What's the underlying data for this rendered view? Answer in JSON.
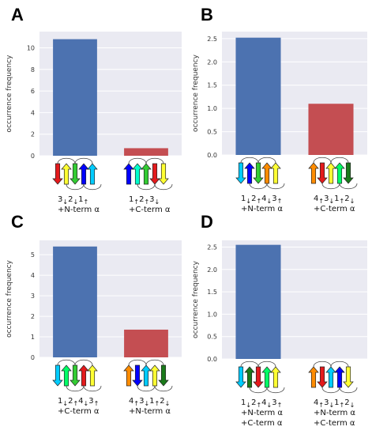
{
  "chart_data": [
    {
      "panel": "A",
      "type": "bar",
      "ylabel": "occurrence frequency",
      "ylim": [
        0,
        11.5
      ],
      "yticks": [
        0,
        2,
        4,
        6,
        8,
        10
      ],
      "grid": true,
      "bars": [
        {
          "value": 10.8,
          "color": "#4c72b0",
          "topology": [
            "3",
            "↓",
            "2",
            "↓",
            "1",
            "↑"
          ],
          "caption_lines": [
            "+N-term α"
          ],
          "arrows": [
            {
              "color": "#e41a1c",
              "dir": "down"
            },
            {
              "color": "#ffff33",
              "dir": "up"
            },
            {
              "color": "#33cc33",
              "dir": "down"
            },
            {
              "color": "#0000ff",
              "dir": "up"
            },
            {
              "color": "#00ccff",
              "dir": "up"
            }
          ]
        },
        {
          "value": 0.7,
          "color": "#c44e52",
          "topology": [
            "1",
            "↑",
            "2",
            "↑",
            "3",
            "↓"
          ],
          "caption_lines": [
            "+C-term α"
          ],
          "arrows": [
            {
              "color": "#0000ff",
              "dir": "up"
            },
            {
              "color": "#00ffcc",
              "dir": "up"
            },
            {
              "color": "#33cc33",
              "dir": "up"
            },
            {
              "color": "#e41a1c",
              "dir": "down"
            },
            {
              "color": "#ffff33",
              "dir": "down"
            }
          ]
        }
      ]
    },
    {
      "panel": "B",
      "type": "bar",
      "ylabel": "occurrence frequency",
      "ylim": [
        0,
        2.65
      ],
      "yticks": [
        "0.0",
        "0.5",
        "1.0",
        "1.5",
        "2.0",
        "2.5"
      ],
      "grid": true,
      "bars": [
        {
          "value": 2.52,
          "color": "#4c72b0",
          "topology": [
            "1",
            "↓",
            "2",
            "↑",
            "4",
            "↓",
            "3",
            "↑"
          ],
          "caption_lines": [
            "+N-term α"
          ],
          "arrows": [
            {
              "color": "#00ccff",
              "dir": "down"
            },
            {
              "color": "#0000ff",
              "dir": "up"
            },
            {
              "color": "#33cc33",
              "dir": "down"
            },
            {
              "color": "#ff8c00",
              "dir": "up"
            },
            {
              "color": "#ffff33",
              "dir": "up"
            }
          ]
        },
        {
          "value": 1.1,
          "color": "#c44e52",
          "topology": [
            "4",
            "↑",
            "3",
            "↓",
            "1",
            "↑",
            "2",
            "↓"
          ],
          "caption_lines": [
            "+C-term α"
          ],
          "arrows": [
            {
              "color": "#ff8c00",
              "dir": "up"
            },
            {
              "color": "#e41a1c",
              "dir": "down"
            },
            {
              "color": "#ffff33",
              "dir": "up"
            },
            {
              "color": "#00ff66",
              "dir": "up"
            },
            {
              "color": "#1a7a1a",
              "dir": "down"
            }
          ]
        }
      ]
    },
    {
      "panel": "C",
      "type": "bar",
      "ylabel": "occurrence frequency",
      "ylim": [
        0,
        5.7
      ],
      "yticks": [
        0,
        1,
        2,
        3,
        4,
        5
      ],
      "grid": true,
      "bars": [
        {
          "value": 5.4,
          "color": "#4c72b0",
          "topology": [
            "1",
            "↓",
            "2",
            "↑",
            "4",
            "↓",
            "3",
            "↑"
          ],
          "caption_lines": [
            "+C-term α"
          ],
          "arrows": [
            {
              "color": "#00ccff",
              "dir": "down"
            },
            {
              "color": "#00ff66",
              "dir": "up"
            },
            {
              "color": "#33cc33",
              "dir": "down"
            },
            {
              "color": "#e41a1c",
              "dir": "up"
            },
            {
              "color": "#ffff33",
              "dir": "up"
            }
          ]
        },
        {
          "value": 1.35,
          "color": "#c44e52",
          "topology": [
            "4",
            "↑",
            "3",
            "↓",
            "1",
            "↑",
            "2",
            "↓"
          ],
          "caption_lines": [
            "+N-term α"
          ],
          "arrows": [
            {
              "color": "#ff8c00",
              "dir": "up"
            },
            {
              "color": "#0000ff",
              "dir": "down"
            },
            {
              "color": "#00ccff",
              "dir": "up"
            },
            {
              "color": "#ffff33",
              "dir": "up"
            },
            {
              "color": "#1a7a1a",
              "dir": "down"
            }
          ]
        }
      ]
    },
    {
      "panel": "D",
      "type": "bar",
      "ylabel": "occurrence frequency",
      "ylim": [
        0,
        2.65
      ],
      "yticks": [
        "0.0",
        "0.5",
        "1.0",
        "1.5",
        "2.0",
        "2.5"
      ],
      "grid": true,
      "bars": [
        {
          "value": 2.55,
          "color": "#4c72b0",
          "topology": [
            "1",
            "↓",
            "2",
            "↑",
            "4",
            "↓",
            "3",
            "↑"
          ],
          "caption_lines": [
            "+N-term α",
            "+C-term α"
          ],
          "arrows": [
            {
              "color": "#00ccff",
              "dir": "down"
            },
            {
              "color": "#1a7a1a",
              "dir": "up"
            },
            {
              "color": "#e41a1c",
              "dir": "down"
            },
            {
              "color": "#00ff66",
              "dir": "up"
            },
            {
              "color": "#ffff33",
              "dir": "up"
            }
          ]
        },
        {
          "value": 0,
          "color": "#c44e52",
          "topology": [
            "4",
            "↑",
            "3",
            "↓",
            "1",
            "↑",
            "2",
            "↓"
          ],
          "caption_lines": [
            "+N-term α",
            "+C-term α"
          ],
          "arrows": [
            {
              "color": "#ff8c00",
              "dir": "up"
            },
            {
              "color": "#e41a1c",
              "dir": "down"
            },
            {
              "color": "#00ccff",
              "dir": "up"
            },
            {
              "color": "#0000ff",
              "dir": "up"
            },
            {
              "color": "#ffff33",
              "dir": "down"
            }
          ]
        }
      ]
    }
  ]
}
